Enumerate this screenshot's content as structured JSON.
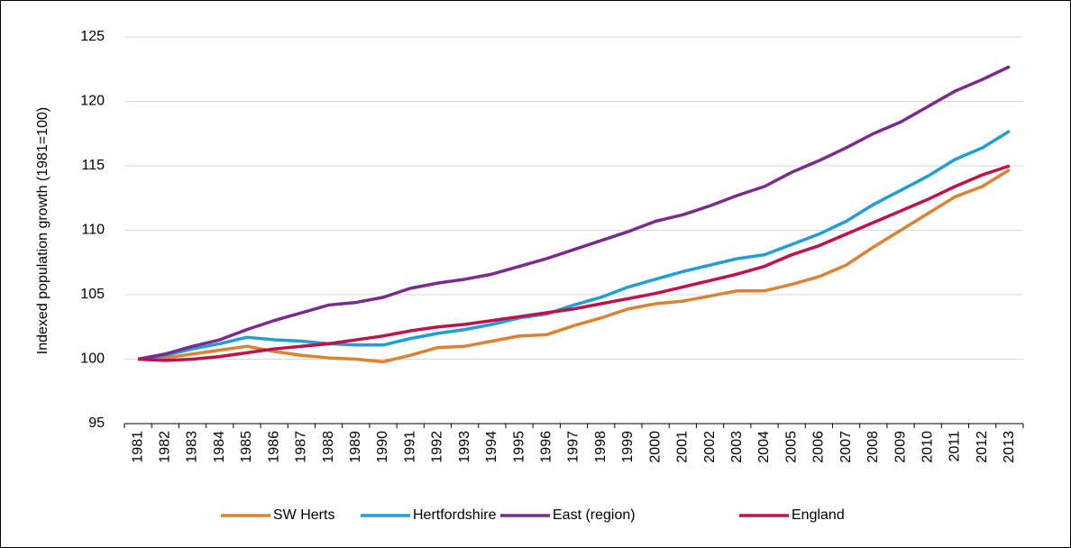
{
  "chart_data": {
    "type": "line",
    "y_label": "Indexed population growth (1981=100)",
    "categories": [
      "1981",
      "1982",
      "1983",
      "1984",
      "1985",
      "1986",
      "1987",
      "1988",
      "1989",
      "1990",
      "1991",
      "1992",
      "1993",
      "1994",
      "1995",
      "1996",
      "1997",
      "1998",
      "1999",
      "2000",
      "2001",
      "2002",
      "2003",
      "2004",
      "2005",
      "2006",
      "2007",
      "2008",
      "2009",
      "2010",
      "2011",
      "2012",
      "2013"
    ],
    "series": [
      {
        "name": "SW Herts",
        "color": "#dd8330",
        "values": [
          100,
          100.1,
          100.4,
          100.7,
          101.0,
          100.6,
          100.3,
          100.1,
          100.0,
          99.8,
          100.3,
          100.9,
          101.0,
          101.4,
          101.8,
          101.9,
          102.6,
          103.2,
          103.9,
          104.3,
          104.5,
          104.9,
          105.3,
          105.3,
          105.8,
          106.4,
          107.3,
          108.7,
          110.0,
          111.3,
          112.6,
          113.4,
          114.7
        ]
      },
      {
        "name": "Hertfordshire",
        "color": "#1e9fd9",
        "values": [
          100,
          100.3,
          100.8,
          101.2,
          101.7,
          101.5,
          101.4,
          101.2,
          101.1,
          101.1,
          101.6,
          102.0,
          102.3,
          102.7,
          103.2,
          103.5,
          104.2,
          104.8,
          105.6,
          106.2,
          106.8,
          107.3,
          107.8,
          108.1,
          108.9,
          109.7,
          110.7,
          112.0,
          113.1,
          114.2,
          115.5,
          116.4,
          117.7
        ]
      },
      {
        "name": "East (region)",
        "color": "#7a2c8c",
        "values": [
          100,
          100.4,
          101.0,
          101.5,
          102.3,
          103.0,
          103.6,
          104.2,
          104.4,
          104.8,
          105.5,
          105.9,
          106.2,
          106.6,
          107.2,
          107.8,
          108.5,
          109.2,
          109.9,
          110.7,
          111.2,
          111.9,
          112.7,
          113.4,
          114.5,
          115.4,
          116.4,
          117.5,
          118.4,
          119.6,
          120.8,
          121.7,
          122.7
        ]
      },
      {
        "name": "England",
        "color": "#c0124a",
        "values": [
          100,
          99.9,
          100.0,
          100.2,
          100.5,
          100.8,
          101.0,
          101.2,
          101.5,
          101.8,
          102.2,
          102.5,
          102.7,
          103.0,
          103.3,
          103.6,
          103.9,
          104.3,
          104.7,
          105.1,
          105.6,
          106.1,
          106.6,
          107.2,
          108.1,
          108.8,
          109.7,
          110.6,
          111.5,
          112.4,
          113.4,
          114.3,
          115.0
        ]
      }
    ],
    "ylim": [
      95,
      125
    ],
    "yticks": [
      95,
      100,
      105,
      110,
      115,
      120,
      125
    ],
    "grid": true,
    "legend": "bottom"
  }
}
